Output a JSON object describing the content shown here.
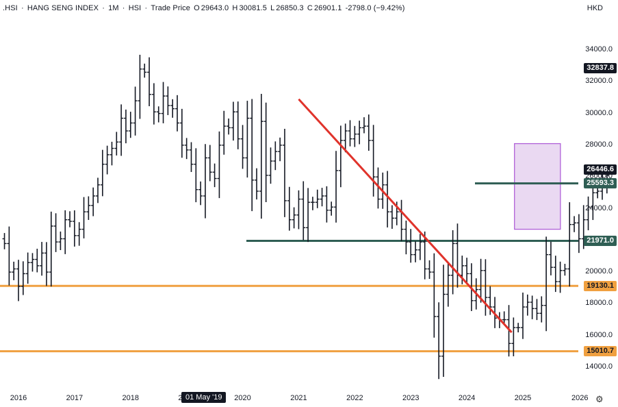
{
  "header": {
    "symbol": ".HSI",
    "name": "HANG SENG INDEX",
    "interval": "1M",
    "exchange": "HSI",
    "source": "Trade Price",
    "o_label": "O",
    "o": "29643.0",
    "h_label": "H",
    "h": "30081.5",
    "l_label": "L",
    "l": "26850.3",
    "c_label": "C",
    "c": "26901.1",
    "change": "-2798.0 (−9.42%)"
  },
  "currency": "HKD",
  "crosshair_date": "01 May '19",
  "price_badges": [
    "32837.8",
    "26446.6",
    "25593.3",
    "21971.0",
    "19130.1",
    "15010.7"
  ],
  "chart_data": {
    "type": "ohlc",
    "y_ticks": [
      "34000.0",
      "32000.0",
      "30000.0",
      "28000.0",
      "26000.0",
      "24000.0",
      "22000.0",
      "20000.0",
      "18000.0",
      "16000.0",
      "14000.0"
    ],
    "x_ticks": [
      "2016",
      "2017",
      "2018",
      "2019",
      "2020",
      "2021",
      "2022",
      "2023",
      "2024",
      "2025",
      "2026"
    ],
    "ylim": [
      13000,
      36500
    ],
    "x_start": 2015.75,
    "x_end": 2026.0,
    "monthly_closes": [
      21800,
      20000,
      20200,
      19100,
      19900,
      20600,
      20800,
      20400,
      21200,
      20000,
      22900,
      21900,
      22100,
      23300,
      23200,
      22300,
      22700,
      23800,
      24200,
      24800,
      25500,
      26800,
      27400,
      27800,
      28200,
      29700,
      28900,
      29400,
      30800,
      32800,
      32600,
      31200,
      30100,
      30000,
      31100,
      30500,
      30300,
      29400,
      28000,
      27700,
      26800,
      25200,
      24800,
      27200,
      26300,
      25900,
      28000,
      29200,
      29100,
      30100,
      28400,
      27200,
      29700,
      25800,
      25100,
      29500,
      26100,
      27000,
      27600,
      28000,
      24500,
      23300,
      23600,
      24600,
      22800,
      24400,
      24400,
      24600,
      24800,
      23900,
      24100,
      26400,
      28300,
      28900,
      28400,
      28700,
      29100,
      29200,
      28300,
      26000,
      24600,
      25500,
      23800,
      23400,
      23800,
      22700,
      21900,
      21100,
      21400,
      21900,
      20200,
      20000,
      17200,
      14700,
      18600,
      19800,
      21800,
      19800,
      20400,
      19900,
      18200,
      18900,
      20100,
      18400,
      17800,
      17100,
      17000,
      17000,
      15500,
      16500,
      16500,
      17800,
      18100,
      17700,
      17400,
      17900,
      21100,
      20300,
      19400,
      20100,
      20200,
      23000,
      23100,
      22100,
      23300,
      24100,
      25000,
      25100,
      25600,
      26100
    ],
    "horizontal_levels": [
      {
        "value": 25593.3,
        "color": "#2f5e54"
      },
      {
        "value": 21971.0,
        "color": "#2f5e54"
      },
      {
        "value": 19130.1,
        "color": "#f0a040"
      },
      {
        "value": 15010.7,
        "color": "#f0a040"
      }
    ],
    "trendline": {
      "x1": 2021.0,
      "y1": 30900,
      "x2": 2024.8,
      "y2": 16200,
      "color": "#e0332b"
    },
    "box": {
      "x1": 2024.85,
      "x2": 2025.67,
      "y1": 22700,
      "y2": 28100,
      "fill": "#e6d2f0",
      "stroke": "#b060d8"
    }
  },
  "colors": {
    "bars": "#131722",
    "badge_dark": "#131722",
    "badge_green": "#2f5e54",
    "badge_orange": "#f0a040"
  }
}
